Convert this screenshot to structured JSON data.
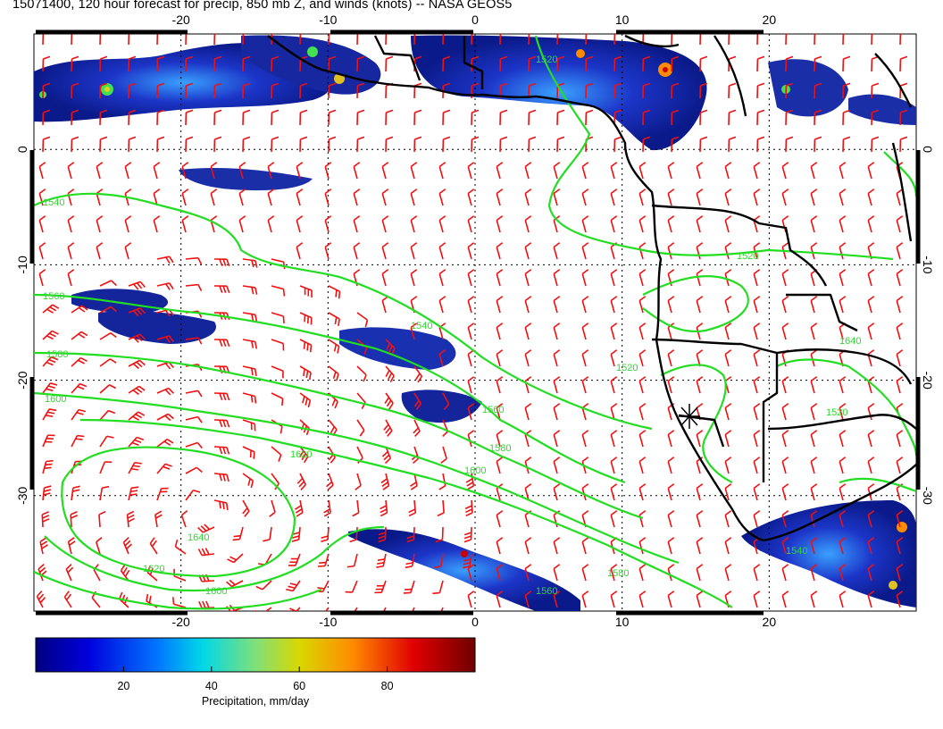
{
  "title": "15071400, 120 hour forecast for precip, 850 mb Z, and winds (knots) -- NASA GEOS5",
  "map": {
    "lon_ticks": [
      "-20",
      "-10",
      "0",
      "10",
      "20"
    ],
    "lat_ticks": [
      "0",
      "-10",
      "-20",
      "-30"
    ],
    "lon_range": [
      -30,
      30
    ],
    "lat_range": [
      -40,
      10
    ],
    "gridlines": true,
    "contour_labels": [
      "1540",
      "1560",
      "1580",
      "1600",
      "1620",
      "1640",
      "1520"
    ],
    "colors": {
      "contour": "#22dd22",
      "wind_barb": "#ee1111",
      "coastline": "#000000",
      "precip_low": "#0a1a8c",
      "precip_high": "#cc0000"
    }
  },
  "colorbar": {
    "ticks": [
      "20",
      "40",
      "60",
      "80"
    ],
    "tick_values": [
      20,
      40,
      60,
      80
    ],
    "range": [
      0,
      100
    ],
    "label": "Precipitation, mm/day"
  }
}
